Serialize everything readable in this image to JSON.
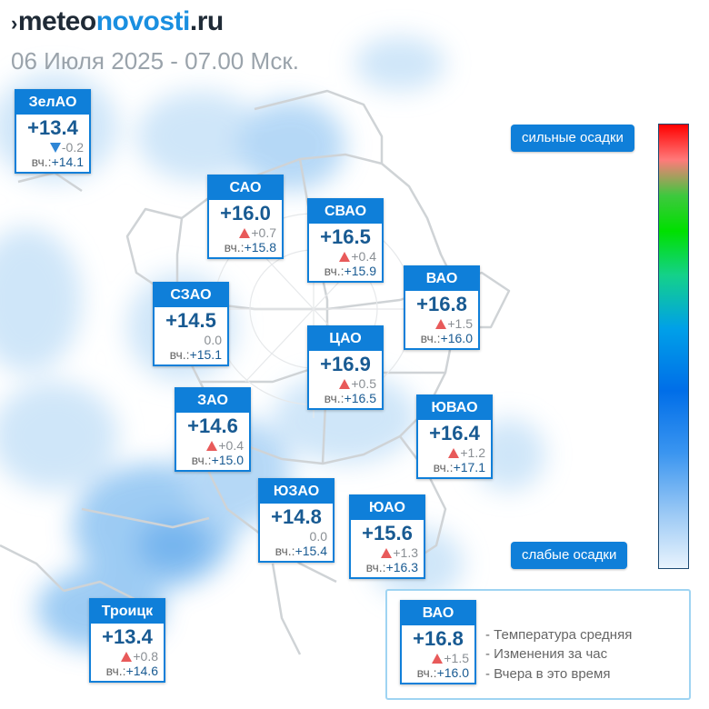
{
  "header": {
    "logo_dark": "meteo",
    "logo_blue": "novosti",
    "logo_tail": ".ru",
    "subtitle": "06 Июля 2025 - 07.00 Мск."
  },
  "colors": {
    "accent": "#0f7fd9",
    "temp": "#185a92",
    "rise": "#e85a5a",
    "fall": "#2e86d6",
    "precip_light": "#c7e2f8"
  },
  "yesterday_label": "вч.:",
  "districts": [
    {
      "name": "ЗелАО",
      "temp": "+13.4",
      "change": "-0.2",
      "trend": "down",
      "yesterday": "+14.1"
    },
    {
      "name": "САО",
      "temp": "+16.0",
      "change": "+0.7",
      "trend": "up",
      "yesterday": "+15.8"
    },
    {
      "name": "СВАО",
      "temp": "+16.5",
      "change": "+0.4",
      "trend": "up",
      "yesterday": "+15.9"
    },
    {
      "name": "ВАО",
      "temp": "+16.8",
      "change": "+1.5",
      "trend": "up",
      "yesterday": "+16.0"
    },
    {
      "name": "СЗАО",
      "temp": "+14.5",
      "change": "0.0",
      "trend": "none",
      "yesterday": "+15.1"
    },
    {
      "name": "ЦАО",
      "temp": "+16.9",
      "change": "+0.5",
      "trend": "up",
      "yesterday": "+16.5"
    },
    {
      "name": "ЗАО",
      "temp": "+14.6",
      "change": "+0.4",
      "trend": "up",
      "yesterday": "+15.0"
    },
    {
      "name": "ЮВАО",
      "temp": "+16.4",
      "change": "+1.2",
      "trend": "up",
      "yesterday": "+17.1"
    },
    {
      "name": "ЮЗАО",
      "temp": "+14.8",
      "change": "0.0",
      "trend": "none",
      "yesterday": "+15.4"
    },
    {
      "name": "ЮАО",
      "temp": "+15.6",
      "change": "+1.3",
      "trend": "up",
      "yesterday": "+16.3"
    },
    {
      "name": "Троицк",
      "temp": "+13.4",
      "change": "+0.8",
      "trend": "up",
      "yesterday": "+14.6"
    }
  ],
  "scale": {
    "top_label": "сильные осадки",
    "bottom_label": "слабые осадки"
  },
  "legend": {
    "sample": {
      "name": "ВАО",
      "temp": "+16.8",
      "change": "+1.5",
      "trend": "up",
      "yesterday": "+16.0"
    },
    "lines": [
      "- Температура средняя",
      "- Изменения за час",
      "- Вчера в это время"
    ]
  }
}
